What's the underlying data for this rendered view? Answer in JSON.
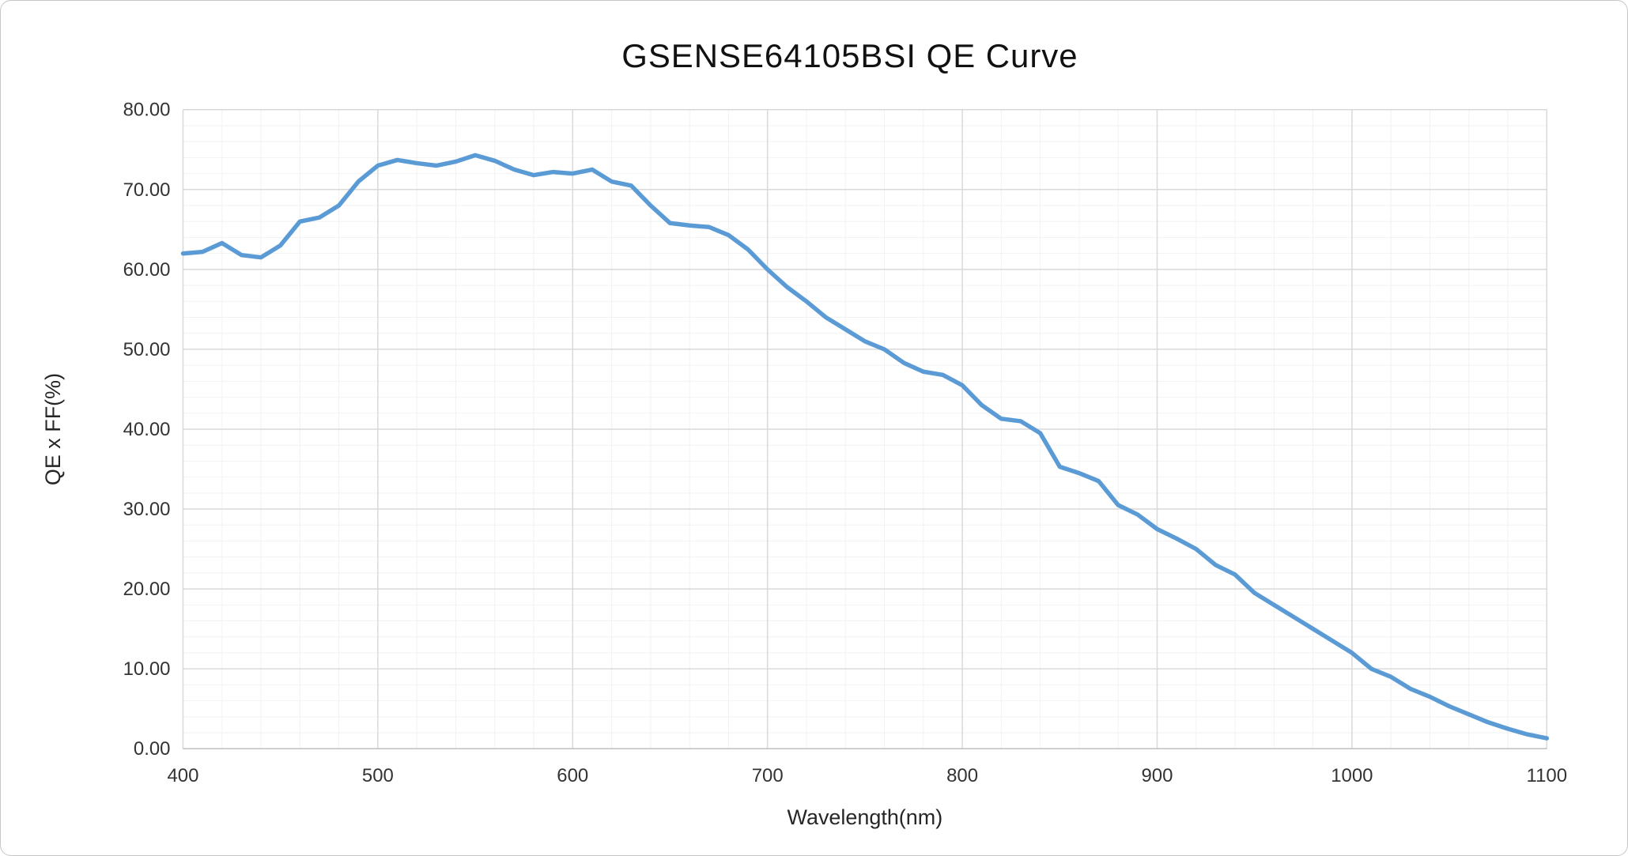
{
  "chart_data": {
    "type": "line",
    "title": "GSENSE64105BSI QE Curve",
    "xlabel": "Wavelength(nm)",
    "ylabel": "QE x FF(%)",
    "xlim": [
      400,
      1100
    ],
    "ylim": [
      0,
      80
    ],
    "grid": "major and minor gridlines, light gray, legend none",
    "series_name": "QE x FF",
    "x": [
      400,
      410,
      420,
      430,
      440,
      450,
      460,
      470,
      480,
      490,
      500,
      510,
      520,
      530,
      540,
      550,
      560,
      570,
      580,
      590,
      600,
      610,
      620,
      630,
      640,
      650,
      660,
      670,
      680,
      690,
      700,
      710,
      720,
      730,
      740,
      750,
      760,
      770,
      780,
      790,
      800,
      810,
      820,
      830,
      840,
      850,
      860,
      870,
      880,
      890,
      900,
      910,
      920,
      930,
      940,
      950,
      960,
      970,
      980,
      990,
      1000,
      1010,
      1020,
      1030,
      1040,
      1050,
      1060,
      1070,
      1080,
      1090,
      1100
    ],
    "values": [
      62.0,
      62.2,
      63.3,
      61.8,
      61.5,
      63.0,
      66.0,
      66.5,
      68.0,
      71.0,
      73.0,
      73.7,
      73.3,
      73.0,
      73.5,
      74.3,
      73.6,
      72.5,
      71.8,
      72.2,
      72.0,
      72.5,
      71.0,
      70.5,
      68.0,
      65.8,
      65.5,
      65.3,
      64.3,
      62.5,
      60.0,
      57.8,
      56.0,
      54.0,
      52.5,
      51.0,
      50.0,
      48.3,
      47.2,
      46.8,
      45.5,
      43.0,
      41.3,
      41.0,
      39.5,
      35.3,
      34.5,
      33.5,
      30.5,
      29.3,
      27.5,
      26.3,
      25.0,
      23.0,
      21.8,
      19.5,
      18.0,
      16.5,
      15.0,
      13.5,
      12.0,
      10.0,
      9.0,
      7.5,
      6.5,
      5.3,
      4.3,
      3.3,
      2.5,
      1.8,
      1.3
    ],
    "x_ticks": [
      {
        "v": 400,
        "label": "400"
      },
      {
        "v": 500,
        "label": "500"
      },
      {
        "v": 600,
        "label": "600"
      },
      {
        "v": 700,
        "label": "700"
      },
      {
        "v": 800,
        "label": "800"
      },
      {
        "v": 900,
        "label": "900"
      },
      {
        "v": 1000,
        "label": "1000"
      },
      {
        "v": 1100,
        "label": "1100"
      }
    ],
    "y_ticks": [
      {
        "v": 0,
        "label": "0.00"
      },
      {
        "v": 10,
        "label": "10.00"
      },
      {
        "v": 20,
        "label": "20.00"
      },
      {
        "v": 30,
        "label": "30.00"
      },
      {
        "v": 40,
        "label": "40.00"
      },
      {
        "v": 50,
        "label": "50.00"
      },
      {
        "v": 60,
        "label": "60.00"
      },
      {
        "v": 70,
        "label": "70.00"
      },
      {
        "v": 80,
        "label": "80.00"
      }
    ],
    "x_minor_step": 20,
    "y_minor_step": 2,
    "colors": {
      "line": "#5B9BD5",
      "major_grid": "#D9D9D9",
      "minor_grid": "#F2F2F2",
      "axis_line": "#BFBFBF",
      "text": "#262626",
      "background": "#FFFFFF",
      "border": "#C6C6C6"
    }
  }
}
